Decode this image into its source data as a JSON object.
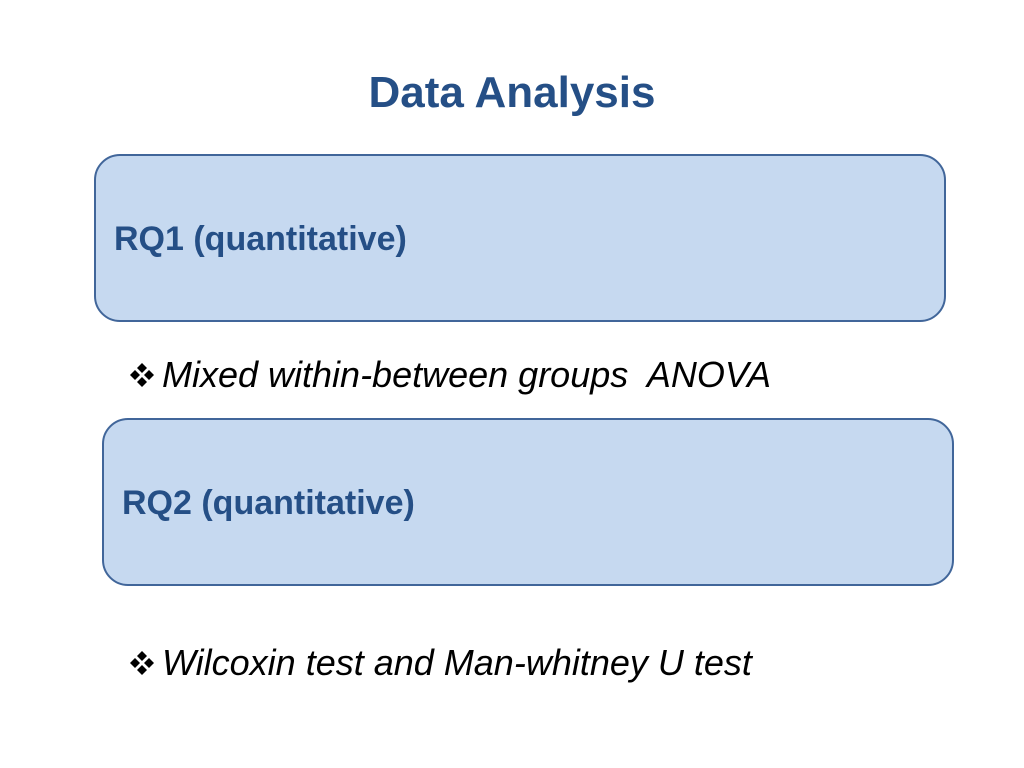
{
  "title": "Data Analysis",
  "sections": [
    {
      "label": "RQ1 (quantitative)",
      "bullet": "Mixed within-between groups  ANOVA"
    },
    {
      "label": "RQ2 (quantitative)",
      "bullet": "Wilcoxin test and Man-whitney U test"
    }
  ]
}
